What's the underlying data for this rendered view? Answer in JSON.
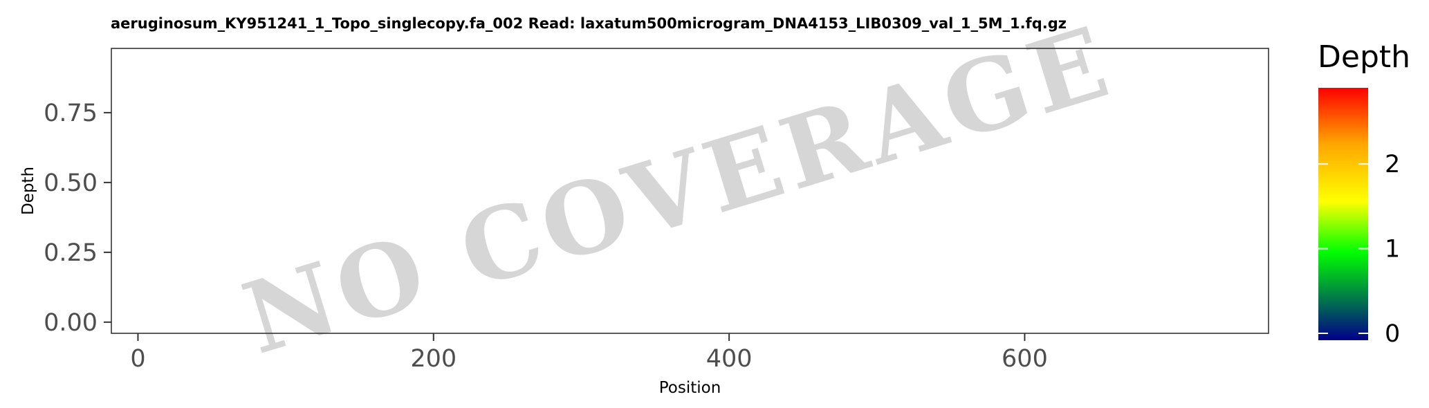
{
  "chart_data": {
    "type": "area",
    "title": "aeruginosum_KY951241_1_Topo_singlecopy.fa_002   Read: laxatum500microgram_DNA4153_LIB0309_val_1_5M_1.fq.gz",
    "xlabel": "Position",
    "ylabel": "Depth",
    "xlim": [
      -18,
      765
    ],
    "ylim": [
      -0.04,
      0.98
    ],
    "x_ticks": [
      0,
      200,
      400,
      600
    ],
    "x_tick_labels": [
      "0",
      "200",
      "400",
      "600"
    ],
    "y_ticks": [
      0,
      0.25,
      0.5,
      0.75
    ],
    "y_tick_labels": [
      "0.00",
      "0.25",
      "0.50",
      "0.75"
    ],
    "series": [],
    "watermark": "NO COVERAGE",
    "grid": false,
    "legend": {
      "title": "Depth",
      "type": "colorbar",
      "placement": "right",
      "range": [
        0,
        2.9
      ],
      "ticks": [
        0,
        1,
        2
      ],
      "tick_labels": [
        "0",
        "1",
        "2"
      ],
      "colors": [
        "#00008b",
        "#00ff00",
        "#ffff00",
        "#ffa500",
        "#ff0000"
      ],
      "color_stops": [
        0,
        0.35,
        0.55,
        0.78,
        1
      ]
    }
  }
}
